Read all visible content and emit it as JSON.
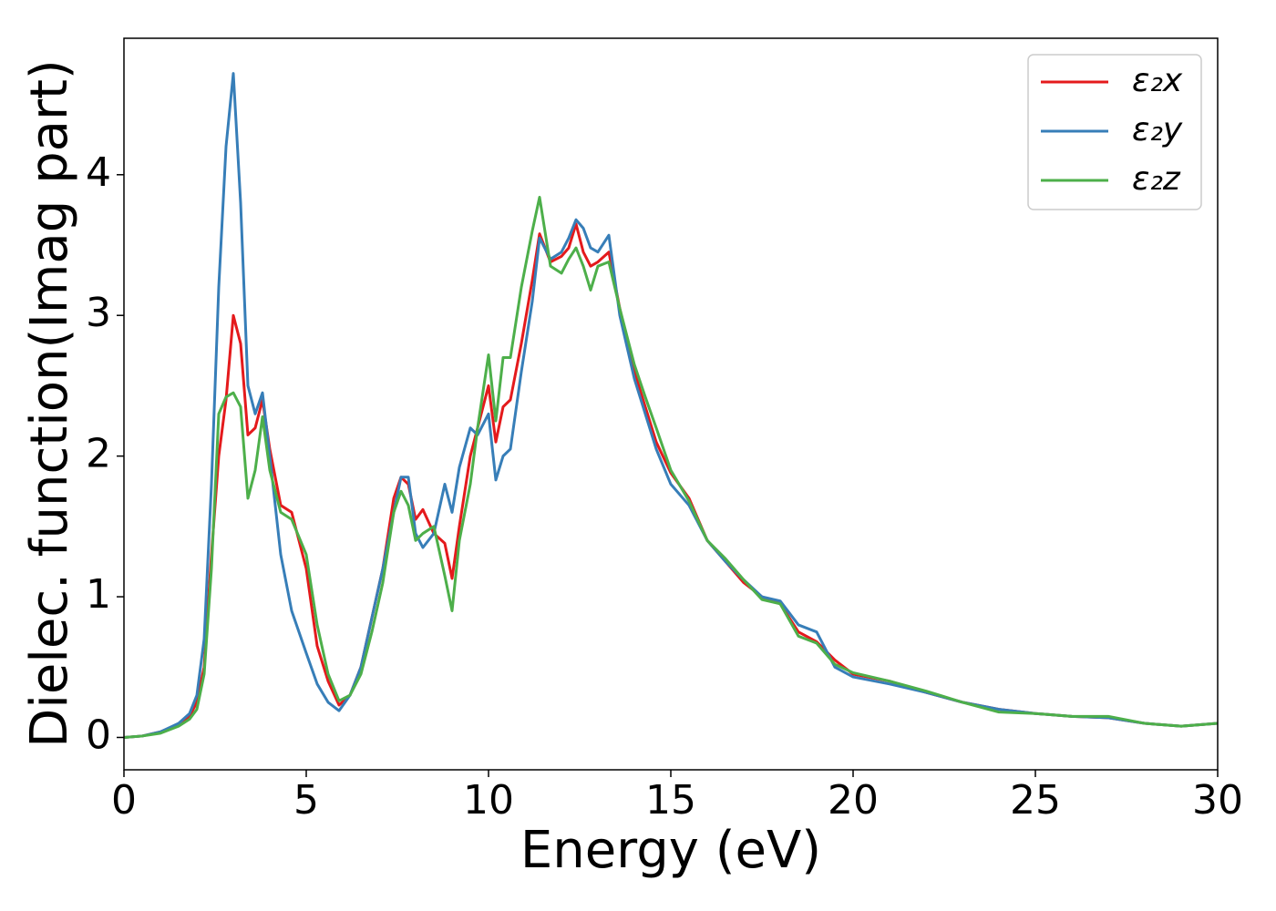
{
  "chart_data": {
    "type": "line",
    "xlabel": "Energy (eV)",
    "ylabel": "Dielec. function(Imag part)",
    "xlim": [
      0,
      30
    ],
    "ylim": [
      -0.23,
      4.97
    ],
    "xticks": [
      0,
      5,
      10,
      15,
      20,
      25,
      30
    ],
    "yticks": [
      0,
      1,
      2,
      3,
      4
    ],
    "legend": "upper right",
    "x": [
      0,
      0.5,
      1,
      1.5,
      1.8,
      2.0,
      2.2,
      2.4,
      2.6,
      2.8,
      3.0,
      3.2,
      3.4,
      3.6,
      3.8,
      4.0,
      4.3,
      4.6,
      5.0,
      5.3,
      5.6,
      5.9,
      6.2,
      6.5,
      6.8,
      7.1,
      7.4,
      7.6,
      7.8,
      8.0,
      8.2,
      8.5,
      8.8,
      9.0,
      9.2,
      9.5,
      9.7,
      10.0,
      10.2,
      10.4,
      10.6,
      10.9,
      11.2,
      11.4,
      11.7,
      12.0,
      12.2,
      12.4,
      12.6,
      12.8,
      13.0,
      13.3,
      13.6,
      14.0,
      14.3,
      14.6,
      15.0,
      15.5,
      16.0,
      16.5,
      17.0,
      17.5,
      18.0,
      18.5,
      19.0,
      19.5,
      20,
      21,
      22,
      23,
      24,
      25,
      26,
      27,
      28,
      29,
      30
    ],
    "series": [
      {
        "name": "ε₂x",
        "color": "#e41a1c",
        "values": [
          0,
          0.01,
          0.04,
          0.09,
          0.15,
          0.25,
          0.5,
          1.3,
          2.0,
          2.4,
          3.0,
          2.8,
          2.15,
          2.2,
          2.4,
          2.05,
          1.65,
          1.6,
          1.2,
          0.65,
          0.4,
          0.23,
          0.3,
          0.5,
          0.85,
          1.2,
          1.7,
          1.85,
          1.8,
          1.55,
          1.62,
          1.45,
          1.38,
          1.13,
          1.5,
          2.0,
          2.2,
          2.5,
          2.1,
          2.35,
          2.4,
          2.8,
          3.25,
          3.58,
          3.38,
          3.42,
          3.48,
          3.65,
          3.45,
          3.35,
          3.38,
          3.45,
          3.05,
          2.6,
          2.35,
          2.1,
          1.88,
          1.7,
          1.4,
          1.25,
          1.1,
          1.0,
          0.95,
          0.75,
          0.68,
          0.55,
          0.45,
          0.4,
          0.32,
          0.25,
          0.2,
          0.17,
          0.15,
          0.14,
          0.1,
          0.08,
          0.1
        ]
      },
      {
        "name": "ε₂y",
        "color": "#377eb8",
        "values": [
          0,
          0.01,
          0.04,
          0.1,
          0.17,
          0.3,
          0.7,
          1.8,
          3.2,
          4.2,
          4.72,
          3.8,
          2.5,
          2.3,
          2.45,
          2.0,
          1.3,
          0.9,
          0.6,
          0.38,
          0.25,
          0.19,
          0.3,
          0.5,
          0.85,
          1.2,
          1.6,
          1.85,
          1.85,
          1.45,
          1.35,
          1.45,
          1.8,
          1.6,
          1.92,
          2.2,
          2.15,
          2.3,
          1.83,
          2.0,
          2.05,
          2.6,
          3.1,
          3.55,
          3.4,
          3.45,
          3.55,
          3.68,
          3.62,
          3.48,
          3.45,
          3.57,
          3.0,
          2.55,
          2.3,
          2.05,
          1.8,
          1.65,
          1.4,
          1.25,
          1.12,
          1.0,
          0.97,
          0.8,
          0.75,
          0.5,
          0.43,
          0.38,
          0.32,
          0.25,
          0.2,
          0.17,
          0.15,
          0.14,
          0.1,
          0.08,
          0.1
        ]
      },
      {
        "name": "ε₂z",
        "color": "#4daf4a",
        "values": [
          0,
          0.01,
          0.03,
          0.08,
          0.13,
          0.2,
          0.45,
          1.2,
          2.3,
          2.42,
          2.45,
          2.35,
          1.7,
          1.9,
          2.28,
          1.9,
          1.6,
          1.55,
          1.3,
          0.8,
          0.45,
          0.26,
          0.3,
          0.45,
          0.75,
          1.1,
          1.6,
          1.75,
          1.65,
          1.4,
          1.45,
          1.5,
          1.15,
          0.9,
          1.4,
          1.8,
          2.2,
          2.72,
          2.25,
          2.7,
          2.7,
          3.2,
          3.6,
          3.84,
          3.35,
          3.3,
          3.4,
          3.48,
          3.35,
          3.18,
          3.35,
          3.38,
          3.05,
          2.65,
          2.42,
          2.2,
          1.9,
          1.68,
          1.4,
          1.27,
          1.12,
          0.98,
          0.95,
          0.72,
          0.67,
          0.52,
          0.46,
          0.4,
          0.33,
          0.25,
          0.18,
          0.17,
          0.15,
          0.15,
          0.1,
          0.08,
          0.1
        ]
      }
    ]
  }
}
